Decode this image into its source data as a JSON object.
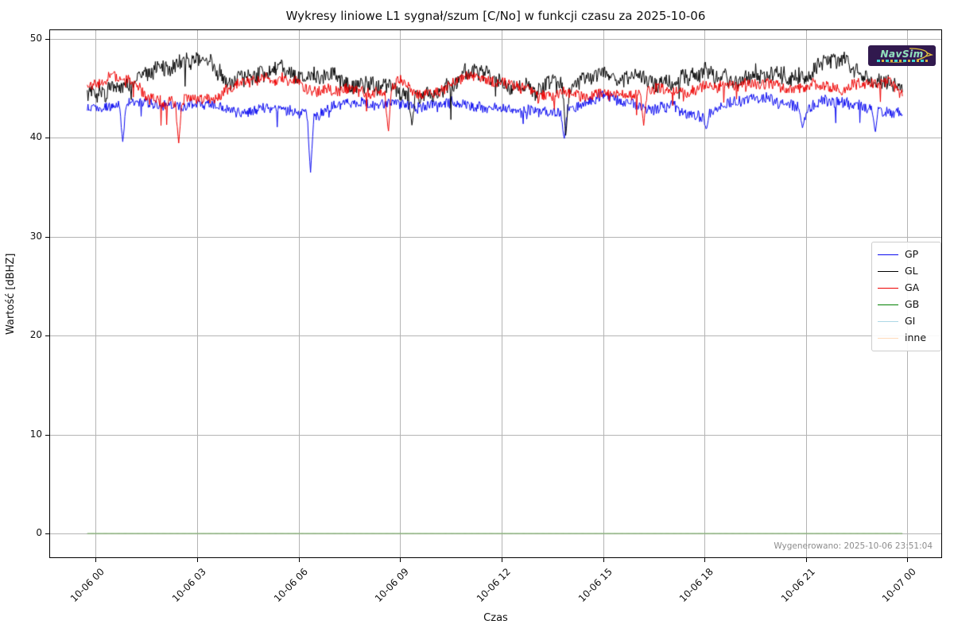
{
  "logo": {
    "text": "NavSim",
    "bg": "#31194e",
    "text_color": "#8fe2b8",
    "accent": "#e0c23c"
  },
  "footer_note": "Wygenerowano: 2025-10-06 23:51:04",
  "chart_data": {
    "type": "line",
    "title": "Wykresy liniowe L1 sygnał/szum [C/No] w funkcji czasu za 2025-10-06",
    "xlabel": "Czas",
    "ylabel": "Wartość [dBHZ]",
    "grid": true,
    "legend_position": "center right",
    "xlim_hours": [
      -1.35,
      25.0
    ],
    "ylim": [
      -2.4,
      50.85
    ],
    "y_ticks": [
      0,
      10,
      20,
      30,
      40,
      50
    ],
    "x_ticks": [
      {
        "hour": 0,
        "label": "10-06 00"
      },
      {
        "hour": 3,
        "label": "10-06 03"
      },
      {
        "hour": 6,
        "label": "10-06 06"
      },
      {
        "hour": 9,
        "label": "10-06 09"
      },
      {
        "hour": 12,
        "label": "10-06 12"
      },
      {
        "hour": 15,
        "label": "10-06 15"
      },
      {
        "hour": 18,
        "label": "10-06 18"
      },
      {
        "hour": 21,
        "label": "10-06 21"
      },
      {
        "hour": 24,
        "label": "10-07 00"
      }
    ],
    "data_start_hour": -0.25,
    "data_end_hour": 23.85,
    "anchor_step_hours": 0.5,
    "series": [
      {
        "name": "GP",
        "color": "#0a0af0",
        "seed": 11,
        "noise": 0.5,
        "needle_prob": 0.014,
        "needle_depth": 2.0,
        "values": [
          42.9,
          43.2,
          43.4,
          43.6,
          43.3,
          43.2,
          43.6,
          43.3,
          42.7,
          42.6,
          43.0,
          42.9,
          42.4,
          42.0,
          43.3,
          43.4,
          43.5,
          43.3,
          43.4,
          42.9,
          43.3,
          43.6,
          43.3,
          42.9,
          43.0,
          42.7,
          42.8,
          42.5,
          42.8,
          43.6,
          44.3,
          43.7,
          43.2,
          42.8,
          43.4,
          42.3,
          42.0,
          43.2,
          43.7,
          43.9,
          43.8,
          43.3,
          42.6,
          43.8,
          43.5,
          43.2,
          42.9,
          42.6,
          42.4
        ],
        "spikes": [
          [
            0.8,
            39.5
          ],
          [
            6.35,
            36.4
          ],
          [
            13.85,
            39.8
          ],
          [
            18.05,
            40.8
          ],
          [
            20.9,
            40.9
          ],
          [
            23.05,
            40.5
          ]
        ]
      },
      {
        "name": "GL",
        "color": "#000000",
        "seed": 23,
        "noise": 0.8,
        "needle_prob": 0.008,
        "needle_depth": 2.2,
        "values": [
          44.3,
          44.8,
          45.4,
          46.7,
          46.9,
          47.6,
          47.9,
          47.3,
          45.6,
          46.3,
          46.4,
          47.2,
          46.1,
          46.2,
          46.5,
          45.3,
          45.4,
          45.2,
          44.6,
          44.0,
          44.5,
          45.4,
          46.7,
          46.3,
          45.5,
          45.2,
          44.8,
          45.3,
          45.1,
          46.0,
          46.5,
          45.9,
          46.2,
          45.3,
          45.6,
          46.3,
          46.8,
          46.0,
          45.4,
          46.4,
          46.6,
          46.0,
          46.3,
          47.6,
          47.9,
          46.5,
          45.8,
          45.4,
          44.6
        ],
        "spikes": [
          [
            9.35,
            41.2
          ],
          [
            13.9,
            40.0
          ]
        ]
      },
      {
        "name": "GA",
        "color": "#ee0000",
        "seed": 37,
        "noise": 0.55,
        "needle_prob": 0.01,
        "needle_depth": 2.0,
        "values": [
          45.2,
          46.4,
          45.8,
          44.0,
          43.6,
          43.8,
          43.9,
          43.8,
          45.2,
          45.6,
          45.8,
          45.9,
          45.6,
          44.6,
          44.8,
          44.9,
          44.6,
          44.4,
          45.9,
          44.3,
          44.4,
          45.5,
          46.4,
          45.8,
          45.5,
          45.1,
          44.4,
          44.3,
          44.5,
          44.2,
          44.4,
          44.3,
          44.5,
          44.9,
          44.6,
          44.8,
          45.3,
          45.2,
          45.5,
          45.3,
          45.4,
          44.9,
          45.2,
          45.3,
          44.8,
          45.6,
          45.4,
          45.5,
          44.2
        ],
        "spikes": [
          [
            2.45,
            39.3
          ],
          [
            8.65,
            40.4
          ],
          [
            16.2,
            41.2
          ]
        ]
      },
      {
        "name": "GB",
        "color": "#008000",
        "seed": 3,
        "noise": 0,
        "needle_prob": 0,
        "needle_depth": 0,
        "constant": 0,
        "alpha": 1.0,
        "spikes": []
      },
      {
        "name": "GI",
        "color": "#add8e6",
        "seed": 5,
        "noise": 0,
        "needle_prob": 0,
        "needle_depth": 0,
        "constant": 0,
        "alpha": 0.35,
        "spikes": []
      },
      {
        "name": "inne",
        "color": "#ffdab9",
        "seed": 7,
        "noise": 0,
        "needle_prob": 0,
        "needle_depth": 0,
        "constant": 0,
        "alpha": 0.55,
        "spikes": []
      }
    ]
  }
}
